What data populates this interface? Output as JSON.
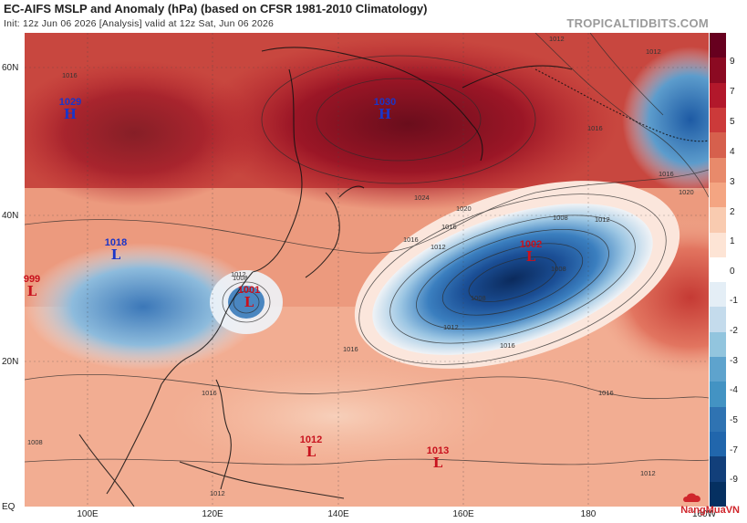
{
  "header": {
    "title": "EC-AIFS MSLP and Anomaly (hPa) (based on CFSR 1981-2010 Climatology)",
    "subtitle": "Init: 12z Jun 06 2026   [Analysis]   valid at 12z Sat, Jun 06 2026",
    "brand": "TROPICALTIDBITS.COM"
  },
  "axes": {
    "lat_labels": [
      "60N",
      "40N",
      "20N",
      "EQ"
    ],
    "lon_labels": [
      "100E",
      "120E",
      "140E",
      "160E",
      "180",
      "160W"
    ]
  },
  "colorbar": {
    "labels": [
      "9",
      "7",
      "5",
      "4",
      "3",
      "2",
      "1",
      "0",
      "-1",
      "-2",
      "-3",
      "-4",
      "-5",
      "-7",
      "-9"
    ],
    "colors": [
      "#67001f",
      "#8b0a22",
      "#b2182b",
      "#cc3a3a",
      "#d6604d",
      "#e88a6b",
      "#f4a582",
      "#f9cbb0",
      "#fde4d5",
      "#ffffff",
      "#e4eef6",
      "#c4dbec",
      "#92c5de",
      "#5ea3cd",
      "#4393c3",
      "#2f73b2",
      "#2166ac",
      "#123f7a",
      "#053061"
    ]
  },
  "pressure_centers": [
    {
      "value": "1029",
      "symbol": "H",
      "type": "high"
    },
    {
      "value": "1030",
      "symbol": "H",
      "type": "high"
    },
    {
      "value": "1018",
      "symbol": "L",
      "type": "low"
    },
    {
      "value": "999",
      "symbol": "L",
      "type": "low"
    },
    {
      "value": "1001",
      "symbol": "L",
      "type": "low"
    },
    {
      "value": "1002",
      "symbol": "L",
      "type": "low"
    },
    {
      "value": "1012",
      "symbol": "L",
      "type": "low"
    },
    {
      "value": "1013",
      "symbol": "L",
      "type": "low"
    }
  ],
  "isobar_labels": [
    "1012",
    "1008",
    "1016",
    "1016",
    "1020",
    "1024",
    "1016",
    "1012",
    "1008",
    "1012",
    "1016",
    "1016",
    "1016",
    "1012",
    "1008",
    "1012",
    "1008",
    "1012",
    "1012",
    "1016",
    "1012",
    "1020",
    "1016",
    "1008",
    "1016"
  ],
  "watermark": "NangMuaVN"
}
